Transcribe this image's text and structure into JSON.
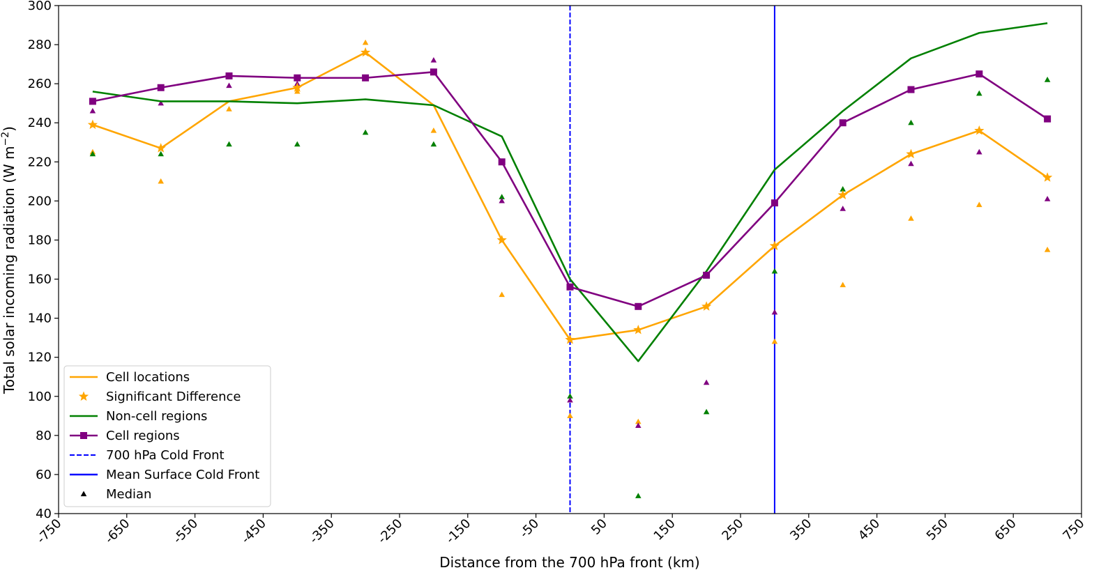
{
  "chart_data": {
    "type": "line",
    "xlabel": "Distance from the 700 hPa front (km)",
    "ylabel_main": "Total solar incoming radiation (W m",
    "ylabel_exp": "−2",
    "ylabel_close": ")",
    "xlim": [
      -750,
      750
    ],
    "ylim": [
      40,
      300
    ],
    "xticks": [
      -750,
      -650,
      -550,
      -450,
      -350,
      -250,
      -150,
      -50,
      50,
      150,
      250,
      350,
      450,
      550,
      650,
      750
    ],
    "yticks": [
      40,
      60,
      80,
      100,
      120,
      140,
      160,
      180,
      200,
      220,
      240,
      260,
      280,
      300
    ],
    "x": [
      -700,
      -600,
      -500,
      -400,
      -300,
      -200,
      -100,
      0,
      100,
      200,
      300,
      400,
      500,
      600,
      700
    ],
    "series": [
      {
        "name": "Cell locations",
        "color": "#FFA500",
        "values": [
          239,
          227,
          251,
          258,
          276,
          249,
          180,
          129,
          134,
          146,
          177,
          203,
          224,
          236,
          212
        ],
        "medians": [
          225,
          210,
          247,
          256,
          281,
          236,
          152,
          90,
          87,
          null,
          128,
          157,
          191,
          198,
          175
        ]
      },
      {
        "name": "Non-cell regions",
        "color": "#008000",
        "values": [
          256,
          251,
          251,
          250,
          252,
          249,
          233,
          160,
          118,
          164,
          216,
          246,
          273,
          286,
          291
        ],
        "medians": [
          224,
          224,
          229,
          229,
          235,
          229,
          202,
          100,
          49,
          92,
          164,
          206,
          240,
          255,
          262
        ]
      },
      {
        "name": "Cell regions",
        "color": "#800080",
        "values": [
          251,
          258,
          264,
          263,
          263,
          266,
          220,
          156,
          146,
          162,
          199,
          240,
          257,
          265,
          242
        ],
        "medians": [
          246,
          250,
          259,
          260,
          null,
          272,
          200,
          98,
          85,
          107,
          143,
          196,
          219,
          225,
          201
        ]
      }
    ],
    "significant_difference": {
      "name": "Significant Difference",
      "x": [
        -700,
        -600,
        -400,
        -300,
        -100,
        0,
        100,
        200,
        300,
        400,
        500,
        600,
        700
      ],
      "y": [
        239,
        227,
        258,
        276,
        180,
        129,
        134,
        146,
        177,
        203,
        224,
        236,
        212
      ]
    },
    "vlines": [
      {
        "name": "700 hPa Cold Front",
        "x": 0,
        "style": "dashed",
        "color": "#0000FF"
      },
      {
        "name": "Mean Surface Cold Front",
        "x": 300,
        "style": "solid",
        "color": "#0000FF"
      }
    ],
    "legend": {
      "placement": "lower-left",
      "entries": [
        {
          "label": "Cell locations",
          "kind": "line",
          "color": "#FFA500"
        },
        {
          "label": "Significant Difference",
          "kind": "star",
          "color": "#FFA500"
        },
        {
          "label": "Non-cell regions",
          "kind": "line",
          "color": "#008000"
        },
        {
          "label": "Cell regions",
          "kind": "line-square",
          "color": "#800080"
        },
        {
          "label": "700 hPa Cold Front",
          "kind": "dashed",
          "color": "#0000FF"
        },
        {
          "label": "Mean Surface Cold Front",
          "kind": "line",
          "color": "#0000FF"
        },
        {
          "label": "Median",
          "kind": "triangle",
          "color": "#000000"
        }
      ]
    },
    "grid": false
  }
}
